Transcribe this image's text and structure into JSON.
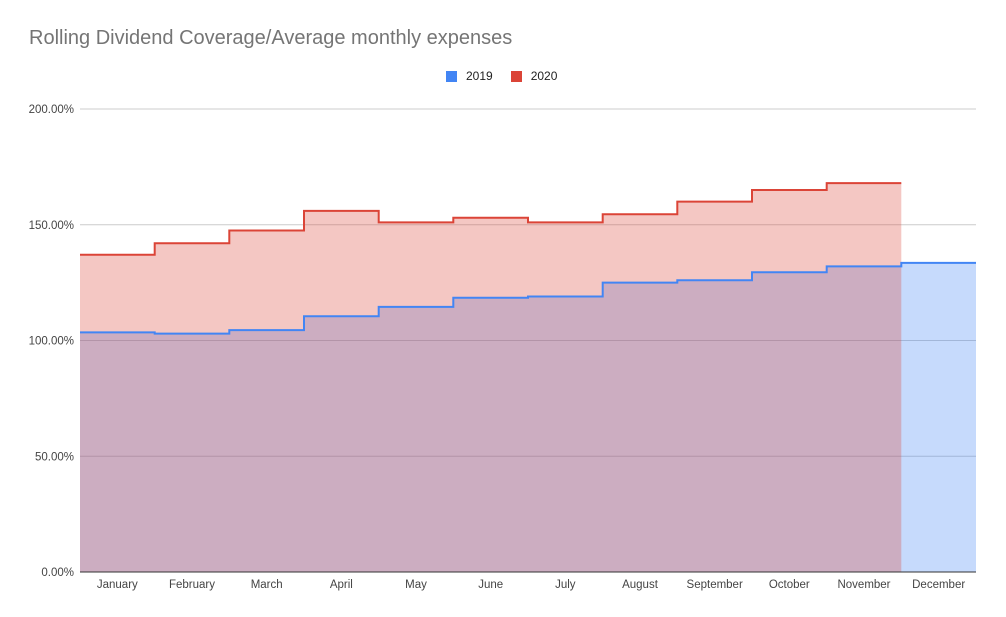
{
  "chart_data": {
    "type": "area",
    "step": true,
    "title": "Rolling Dividend Coverage/Average monthly expenses",
    "xlabel": "",
    "ylabel": "",
    "legend_position": "top",
    "grid": true,
    "ylim": [
      0,
      200
    ],
    "y_ticks": [
      "0.00%",
      "50.00%",
      "100.00%",
      "150.00%",
      "200.00%"
    ],
    "y_tick_values": [
      0,
      50,
      100,
      150,
      200
    ],
    "categories": [
      "January",
      "February",
      "March",
      "April",
      "May",
      "June",
      "July",
      "August",
      "September",
      "October",
      "November",
      "December"
    ],
    "series": [
      {
        "name": "2019",
        "color": "#4285f4",
        "fill": "#c6d8f7",
        "values": [
          103.5,
          103.0,
          104.5,
          110.5,
          114.5,
          118.5,
          119.0,
          125.0,
          126.0,
          129.5,
          132.0,
          133.5
        ]
      },
      {
        "name": "2020",
        "color": "#db4437",
        "fill": "#f4c7c3",
        "values": [
          137.0,
          142.0,
          147.5,
          156.0,
          151.0,
          153.0,
          151.0,
          154.5,
          160.0,
          165.0,
          168.0,
          null
        ]
      }
    ]
  }
}
